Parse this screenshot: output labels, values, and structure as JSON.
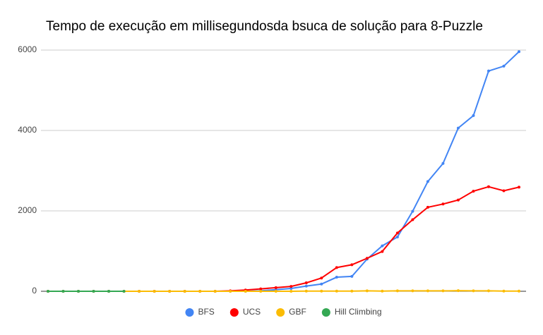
{
  "chart_data": {
    "type": "line",
    "title": "Tempo de execução em millisegundosda bsuca de solução para 8-Puzzle",
    "categories": [
      null,
      null,
      null,
      null,
      null,
      null,
      null,
      null,
      null,
      null,
      null,
      null,
      null,
      null,
      null,
      null,
      null,
      null,
      null,
      null,
      null,
      null,
      null,
      null,
      null,
      null,
      null,
      null,
      null,
      null,
      null,
      null
    ],
    "series": [
      {
        "name": "BFS",
        "color": "#4285f4",
        "values": [
          0,
          0,
          0,
          0,
          0,
          0,
          0,
          0,
          0,
          0,
          0,
          0,
          0,
          0,
          10,
          40,
          70,
          130,
          180,
          350,
          370,
          800,
          1130,
          1350,
          1990,
          2730,
          3180,
          4060,
          4370,
          5480,
          5600,
          5960
        ]
      },
      {
        "name": "UCS",
        "color": "#ff0000",
        "values": [
          0,
          0,
          0,
          0,
          0,
          0,
          0,
          0,
          0,
          0,
          0,
          0,
          10,
          30,
          60,
          90,
          120,
          210,
          330,
          590,
          660,
          820,
          990,
          1450,
          1780,
          2090,
          2170,
          2270,
          2490,
          2600,
          2500,
          2590
        ]
      },
      {
        "name": "GBF",
        "color": "#fbbc04",
        "values": [
          0,
          0,
          0,
          0,
          0,
          0,
          0,
          0,
          0,
          0,
          0,
          0,
          0,
          0,
          0,
          0,
          0,
          5,
          5,
          5,
          5,
          10,
          5,
          10,
          10,
          10,
          10,
          15,
          10,
          10,
          5,
          5
        ]
      },
      {
        "name": "Hill Climbing",
        "color": "#34a853",
        "values": [
          0,
          0,
          0,
          0,
          0,
          0,
          null,
          null,
          null,
          null,
          null,
          null,
          null,
          null,
          null,
          null,
          null,
          null,
          null,
          null,
          null,
          null,
          null,
          null,
          null,
          null,
          null,
          null,
          null,
          null,
          null,
          null
        ]
      }
    ],
    "ylim": [
      0,
      6000
    ],
    "yticks": [
      0,
      2000,
      4000,
      6000
    ],
    "grid": true,
    "legend": "bottom"
  }
}
